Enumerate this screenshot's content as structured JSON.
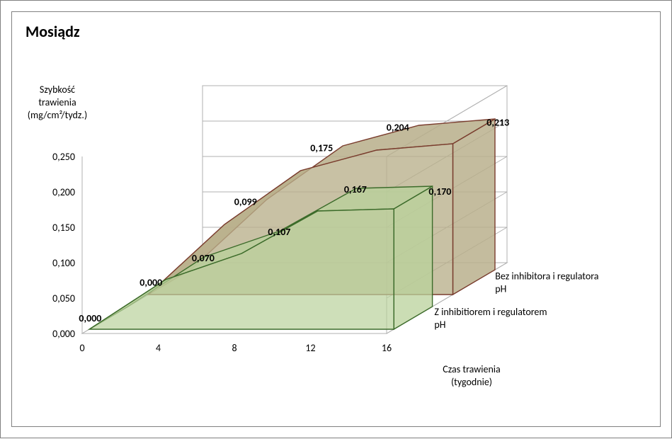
{
  "title": "Mosiądz",
  "y_axis": {
    "title_lines": [
      "Szybkość",
      "trawienia",
      "(mg/cm²/tydz.)"
    ],
    "ticks": [
      "0,000",
      "0,050",
      "0,100",
      "0,150",
      "0,200",
      "0,250"
    ],
    "min": 0.0,
    "max": 0.25,
    "label_color": "#595959",
    "title_fontsize": 14,
    "tick_fontsize": 14
  },
  "x_axis": {
    "title_lines": [
      "Czas trawienia",
      "(tygodnie)"
    ],
    "ticks": [
      "0",
      "4",
      "8",
      "12",
      "16"
    ],
    "values": [
      0,
      4,
      8,
      12,
      16
    ],
    "min": 0,
    "max": 16,
    "title_fontsize": 14,
    "tick_fontsize": 14
  },
  "series": [
    {
      "name": "Bez inhibitora i regulatora pH",
      "depth_order": "back",
      "fill_color": "#b8af8a",
      "fill_opacity": 0.78,
      "stroke_color": "#7a3d2e",
      "stroke_width": 1.4,
      "x": [
        0,
        4,
        8,
        12,
        16
      ],
      "y": [
        0.0,
        0.099,
        0.175,
        0.204,
        0.213
      ],
      "labels": [
        "0,000",
        "0,099",
        "0,175",
        "0,204",
        "0,213"
      ]
    },
    {
      "name": "Z inhibitiorem i regulatorem pH",
      "depth_order": "front",
      "fill_color": "#b9d19b",
      "fill_opacity": 0.7,
      "stroke_color": "#3c6b2a",
      "stroke_width": 1.4,
      "x": [
        0,
        4,
        8,
        12,
        16
      ],
      "y": [
        0.0,
        0.07,
        0.107,
        0.167,
        0.17
      ],
      "labels": [
        "0,000",
        "0,070",
        "0,107",
        "0,167",
        "0,170"
      ]
    }
  ],
  "chart_style": {
    "type": "area-3d",
    "background_color": "#ffffff",
    "wall_back_color": "#ffffff",
    "wall_side_color": "#ffffff",
    "floor_color": "#ffffff",
    "gridline_color": "#b0b0b0",
    "gridline_width": 1,
    "outer_border_color": "#808080",
    "band_depth": 46,
    "band_gap": 24,
    "title_fontsize": 22,
    "title_fontweight": "bold",
    "data_label_fontsize": 14,
    "data_label_fontweight": "bold",
    "series_label_fontsize": 14
  },
  "geometry": {
    "front_origin_x": 115,
    "front_origin_y": 470,
    "front_x_span": 430,
    "front_y_span": 250,
    "oblique_dx": 170,
    "oblique_dy": -100
  }
}
